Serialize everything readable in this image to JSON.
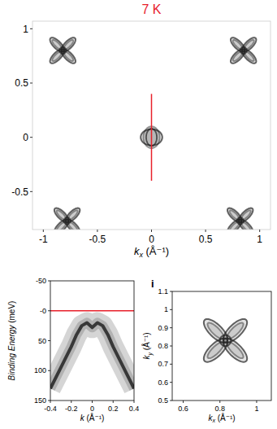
{
  "chart_data": [
    {
      "type": "scatter",
      "title": "7 K",
      "x_label": "kx (Å⁻¹)",
      "xlim": [
        -1.1,
        1.1
      ],
      "ylim": [
        -0.85,
        1.07
      ],
      "xticks": [
        -1,
        -0.5,
        0,
        0.5,
        1
      ],
      "yticks": [
        -0.5,
        0,
        0.5,
        1
      ],
      "series": [
        {
          "marker": "oval",
          "color": "#222222",
          "x": [
            0
          ],
          "values": [
            0
          ]
        },
        {
          "marker": "clover",
          "color": "#222222",
          "x": [
            -0.82,
            0.85,
            -0.78,
            0.82
          ],
          "values": [
            0.8,
            0.8,
            -0.77,
            -0.77
          ]
        }
      ],
      "cut": {
        "x": [
          0,
          0
        ],
        "y": [
          -0.4,
          0.4
        ],
        "color": "#e8212b"
      }
    },
    {
      "type": "line",
      "x_label": "k (Å⁻¹)",
      "y_label": "Binding Energy (meV)",
      "xlim": [
        -0.4,
        0.4
      ],
      "ylim": [
        150,
        -50
      ],
      "xticks": [
        -0.4,
        -0.2,
        0,
        0.2,
        0.4
      ],
      "yticks": [
        -50,
        {
          "value": 0,
          "label": "-0"
        },
        50,
        100,
        150
      ],
      "series": [
        {
          "color": "#222222",
          "x": [
            -0.4,
            -0.3,
            -0.2,
            -0.15,
            -0.1,
            -0.05,
            0,
            0.05,
            0.1,
            0.15,
            0.2,
            0.3,
            0.4
          ],
          "values": [
            130,
            95,
            60,
            40,
            25,
            20,
            28,
            20,
            25,
            40,
            60,
            95,
            130
          ]
        }
      ],
      "cut": {
        "x": [
          -0.4,
          0.4
        ],
        "y": [
          0,
          0
        ],
        "color": "#e8212b"
      }
    },
    {
      "type": "scatter",
      "panel": "i",
      "x_label": "kx (Å⁻¹)",
      "y_label": "ky (Å⁻¹)",
      "xlim": [
        0.54,
        1.08
      ],
      "ylim": [
        0.5,
        1.1
      ],
      "xticks": [
        0.6,
        0.8,
        1
      ],
      "yticks": [
        0.5,
        0.6,
        0.7,
        0.8,
        0.9,
        1,
        1.1
      ],
      "series": [
        {
          "marker": "clover",
          "color": "#222222",
          "x": [
            0.83
          ],
          "values": [
            0.83
          ]
        }
      ]
    }
  ]
}
